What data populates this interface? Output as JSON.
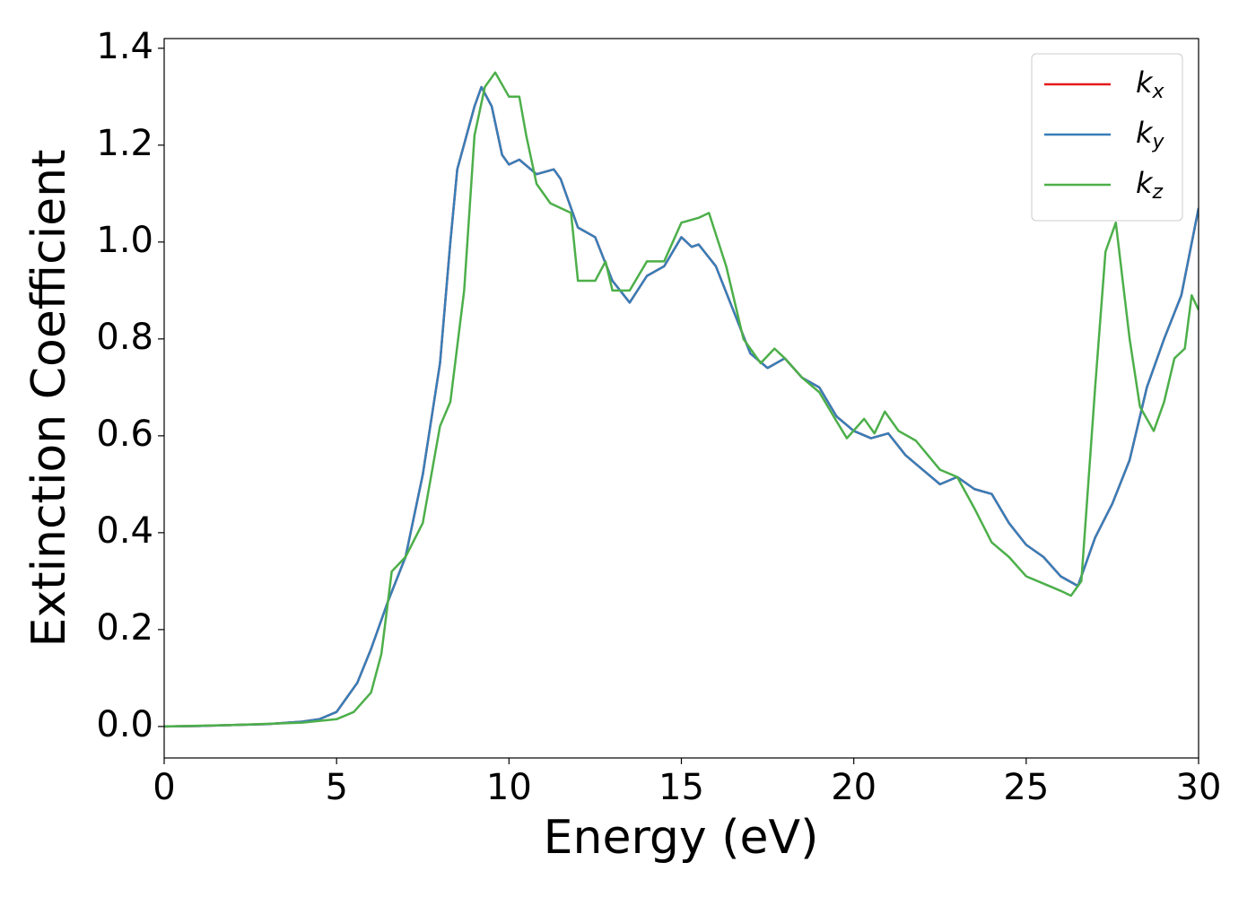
{
  "chart_data": {
    "type": "line",
    "x_label": "Energy (eV)",
    "y_label": "Extinction Coefficient",
    "xlim": [
      0,
      30
    ],
    "ylim": [
      -0.065,
      1.42
    ],
    "xticks": [
      0,
      5,
      10,
      15,
      20,
      25,
      30
    ],
    "yticks": [
      {
        "value": 0,
        "label": "0.0"
      },
      0.2,
      0.4,
      0.6,
      0.8,
      {
        "value": 1,
        "label": "1.0"
      },
      1.2,
      1.4
    ],
    "grid": false,
    "legend": "upper right",
    "series": [
      {
        "name": "kx",
        "color": "#e41a1c",
        "x": [
          0,
          1,
          2,
          3,
          4,
          4.5,
          5,
          5.3,
          5.6,
          6,
          6.5,
          7,
          7.5,
          8,
          8.3,
          8.5,
          9,
          9.2,
          9.5,
          9.8,
          10,
          10.3,
          10.8,
          11.3,
          11.5,
          12,
          12.5,
          13,
          13.5,
          14,
          14.5,
          15,
          15.3,
          15.5,
          16,
          16.5,
          17,
          17.5,
          18,
          18.5,
          19,
          19.5,
          20,
          20.5,
          21,
          21.5,
          22,
          22.5,
          23,
          23.5,
          24,
          24.5,
          25,
          25.5,
          26,
          26.5,
          27,
          27.5,
          28,
          28.5,
          29,
          29.5,
          30
        ],
        "values": [
          0,
          0.001,
          0.003,
          0.005,
          0.01,
          0.015,
          0.03,
          0.06,
          0.09,
          0.16,
          0.26,
          0.35,
          0.52,
          0.75,
          1.0,
          1.15,
          1.28,
          1.32,
          1.28,
          1.18,
          1.16,
          1.17,
          1.14,
          1.15,
          1.13,
          1.03,
          1.01,
          0.92,
          0.875,
          0.93,
          0.95,
          1.01,
          0.99,
          0.995,
          0.95,
          0.86,
          0.77,
          0.74,
          0.76,
          0.72,
          0.7,
          0.64,
          0.61,
          0.595,
          0.605,
          0.56,
          0.53,
          0.5,
          0.515,
          0.49,
          0.48,
          0.42,
          0.375,
          0.35,
          0.31,
          0.29,
          0.39,
          0.46,
          0.55,
          0.7,
          0.8,
          0.89,
          1.07
        ]
      },
      {
        "name": "ky",
        "color": "#377eb8",
        "x": [
          0,
          1,
          2,
          3,
          4,
          4.5,
          5,
          5.3,
          5.6,
          6,
          6.5,
          7,
          7.5,
          8,
          8.3,
          8.5,
          9,
          9.2,
          9.5,
          9.8,
          10,
          10.3,
          10.8,
          11.3,
          11.5,
          12,
          12.5,
          13,
          13.5,
          14,
          14.5,
          15,
          15.3,
          15.5,
          16,
          16.5,
          17,
          17.5,
          18,
          18.5,
          19,
          19.5,
          20,
          20.5,
          21,
          21.5,
          22,
          22.5,
          23,
          23.5,
          24,
          24.5,
          25,
          25.5,
          26,
          26.5,
          27,
          27.5,
          28,
          28.5,
          29,
          29.5,
          30
        ],
        "values": [
          0,
          0.001,
          0.003,
          0.005,
          0.01,
          0.015,
          0.03,
          0.06,
          0.09,
          0.16,
          0.26,
          0.35,
          0.52,
          0.75,
          1.0,
          1.15,
          1.28,
          1.32,
          1.28,
          1.18,
          1.16,
          1.17,
          1.14,
          1.15,
          1.13,
          1.03,
          1.01,
          0.92,
          0.875,
          0.93,
          0.95,
          1.01,
          0.99,
          0.995,
          0.95,
          0.86,
          0.77,
          0.74,
          0.76,
          0.72,
          0.7,
          0.64,
          0.61,
          0.595,
          0.605,
          0.56,
          0.53,
          0.5,
          0.515,
          0.49,
          0.48,
          0.42,
          0.375,
          0.35,
          0.31,
          0.29,
          0.39,
          0.46,
          0.55,
          0.7,
          0.8,
          0.89,
          1.07
        ]
      },
      {
        "name": "kz",
        "color": "#4daf4a",
        "x": [
          0,
          2,
          4,
          5,
          5.5,
          6,
          6.3,
          6.6,
          7,
          7.5,
          8,
          8.3,
          8.7,
          9,
          9.3,
          9.6,
          10,
          10.3,
          10.5,
          10.8,
          11.2,
          11.8,
          12,
          12.5,
          12.8,
          13,
          13.5,
          14,
          14.5,
          15,
          15.5,
          15.8,
          16.3,
          16.8,
          17.3,
          17.7,
          18,
          18.5,
          19,
          19.5,
          19.8,
          20.3,
          20.6,
          20.9,
          21.3,
          21.8,
          22.5,
          23,
          23.5,
          24,
          24.5,
          25,
          25.5,
          26,
          26.3,
          26.6,
          27,
          27.3,
          27.6,
          28,
          28.3,
          28.7,
          29,
          29.3,
          29.6,
          29.8,
          30
        ],
        "values": [
          0,
          0.003,
          0.008,
          0.015,
          0.03,
          0.07,
          0.15,
          0.32,
          0.35,
          0.42,
          0.62,
          0.67,
          0.9,
          1.22,
          1.32,
          1.35,
          1.3,
          1.3,
          1.22,
          1.12,
          1.08,
          1.06,
          0.92,
          0.92,
          0.96,
          0.9,
          0.9,
          0.96,
          0.96,
          1.04,
          1.05,
          1.06,
          0.95,
          0.8,
          0.75,
          0.78,
          0.76,
          0.72,
          0.69,
          0.63,
          0.595,
          0.635,
          0.605,
          0.65,
          0.61,
          0.59,
          0.53,
          0.515,
          0.45,
          0.38,
          0.35,
          0.31,
          0.295,
          0.28,
          0.27,
          0.3,
          0.7,
          0.98,
          1.04,
          0.8,
          0.66,
          0.61,
          0.67,
          0.76,
          0.78,
          0.89,
          0.86
        ]
      }
    ]
  }
}
